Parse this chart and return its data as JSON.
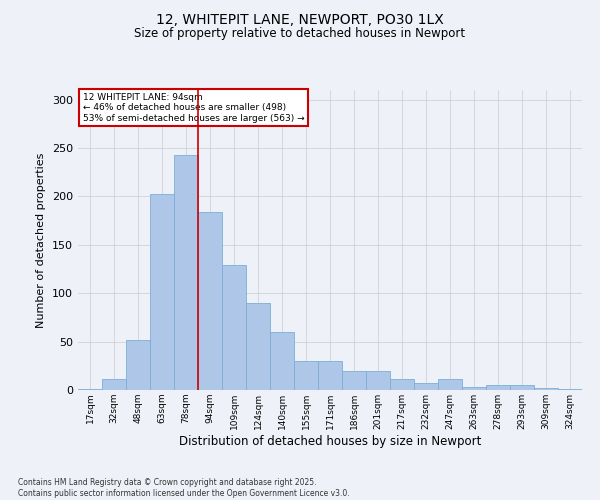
{
  "title1": "12, WHITEPIT LANE, NEWPORT, PO30 1LX",
  "title2": "Size of property relative to detached houses in Newport",
  "xlabel": "Distribution of detached houses by size in Newport",
  "ylabel": "Number of detached properties",
  "categories": [
    "17sqm",
    "32sqm",
    "48sqm",
    "63sqm",
    "78sqm",
    "94sqm",
    "109sqm",
    "124sqm",
    "140sqm",
    "155sqm",
    "171sqm",
    "186sqm",
    "201sqm",
    "217sqm",
    "232sqm",
    "247sqm",
    "263sqm",
    "278sqm",
    "293sqm",
    "309sqm",
    "324sqm"
  ],
  "values": [
    1,
    11,
    52,
    203,
    243,
    184,
    129,
    90,
    60,
    30,
    30,
    20,
    20,
    11,
    7,
    11,
    3,
    5,
    5,
    2,
    1
  ],
  "bar_color": "#aec6e8",
  "bar_edge_color": "#7aafd4",
  "vline_color": "#cc0000",
  "vline_x_index": 4.5,
  "annotation_lines": [
    "12 WHITEPIT LANE: 94sqm",
    "← 46% of detached houses are smaller (498)",
    "53% of semi-detached houses are larger (563) →"
  ],
  "annotation_box_color": "#ffffff",
  "annotation_box_edge": "#cc0000",
  "grid_color": "#cccccc",
  "background_color": "#eef2f8",
  "footer1": "Contains HM Land Registry data © Crown copyright and database right 2025.",
  "footer2": "Contains public sector information licensed under the Open Government Licence v3.0.",
  "ylim": [
    0,
    310
  ],
  "yticks": [
    0,
    50,
    100,
    150,
    200,
    250,
    300
  ]
}
